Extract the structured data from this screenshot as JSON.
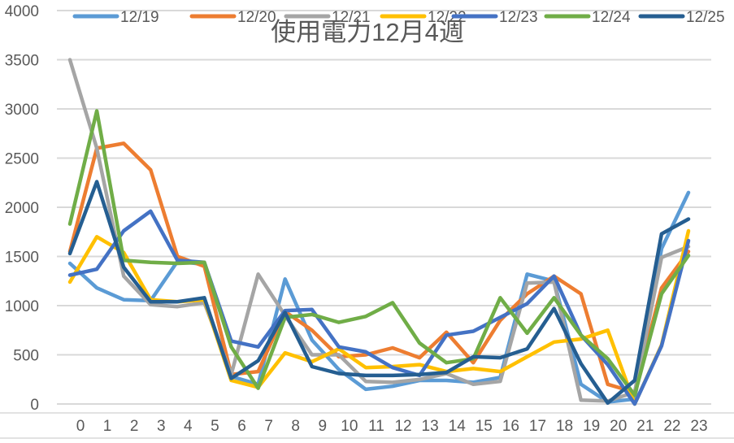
{
  "chart_data": {
    "type": "line",
    "title": "使用電力12月4週",
    "xlabel": "",
    "ylabel": "",
    "x": [
      0,
      1,
      2,
      3,
      4,
      5,
      6,
      7,
      8,
      9,
      10,
      11,
      12,
      13,
      14,
      15,
      16,
      17,
      18,
      19,
      20,
      21,
      22,
      23
    ],
    "categories": [
      "0",
      "1",
      "2",
      "3",
      "4",
      "5",
      "6",
      "7",
      "8",
      "9",
      "10",
      "11",
      "12",
      "13",
      "14",
      "15",
      "16",
      "17",
      "18",
      "19",
      "20",
      "21",
      "22",
      "23"
    ],
    "ylim": [
      0,
      4000
    ],
    "yticks": [
      0,
      500,
      1000,
      1500,
      2000,
      2500,
      3000,
      3500,
      4000
    ],
    "grid": true,
    "legend_position": "top",
    "series": [
      {
        "name": "12/19",
        "color": "#5B9BD5",
        "values": [
          1430,
          1180,
          1060,
          1050,
          1450,
          1420,
          280,
          200,
          1270,
          650,
          350,
          150,
          180,
          240,
          240,
          220,
          270,
          1320,
          1250,
          200,
          20,
          50,
          1580,
          2150
        ]
      },
      {
        "name": "12/20",
        "color": "#ED7D31",
        "values": [
          1550,
          2600,
          2650,
          2380,
          1500,
          1400,
          300,
          330,
          940,
          750,
          480,
          500,
          570,
          470,
          730,
          420,
          850,
          1120,
          1300,
          1120,
          200,
          120,
          1180,
          1550
        ]
      },
      {
        "name": "12/21",
        "color": "#A5A5A5",
        "values": [
          3500,
          2600,
          1300,
          1010,
          990,
          1030,
          300,
          1320,
          900,
          500,
          500,
          230,
          220,
          250,
          310,
          200,
          230,
          1230,
          1240,
          40,
          30,
          120,
          1490,
          1600
        ]
      },
      {
        "name": "12/22",
        "color": "#FFC000",
        "values": [
          1240,
          1700,
          1540,
          1060,
          1040,
          1060,
          240,
          170,
          520,
          430,
          560,
          370,
          380,
          400,
          330,
          360,
          330,
          480,
          630,
          660,
          750,
          0,
          600,
          1760
        ]
      },
      {
        "name": "12/23",
        "color": "#4472C4",
        "values": [
          1310,
          1370,
          1760,
          1960,
          1460,
          1440,
          640,
          580,
          950,
          960,
          580,
          530,
          370,
          290,
          700,
          740,
          880,
          1020,
          1300,
          700,
          400,
          0,
          590,
          1660
        ]
      },
      {
        "name": "12/24",
        "color": "#70AD47",
        "values": [
          1830,
          2980,
          1460,
          1440,
          1430,
          1440,
          580,
          160,
          880,
          910,
          830,
          890,
          1030,
          620,
          420,
          460,
          1080,
          720,
          1080,
          700,
          460,
          90,
          1120,
          1510
        ]
      },
      {
        "name": "12/25",
        "color": "#255E91",
        "values": [
          1530,
          2260,
          1390,
          1040,
          1040,
          1080,
          260,
          440,
          930,
          380,
          310,
          290,
          290,
          300,
          320,
          480,
          470,
          560,
          970,
          410,
          10,
          240,
          1730,
          1880
        ]
      }
    ]
  }
}
